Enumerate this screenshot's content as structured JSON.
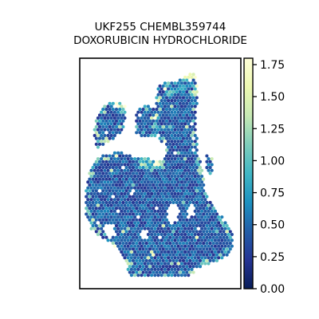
{
  "chart_data": {
    "type": "heatmap",
    "title_lines": [
      "UKF255 CHEMBL359744",
      "DOXORUBICIN HYDROCHLORIDE"
    ],
    "xlabel": "",
    "ylabel": "",
    "colorbar": {
      "colormap": "YlGnBu_r",
      "range": [
        0.0,
        1.8
      ],
      "ticks": [
        0.0,
        0.25,
        0.5,
        0.75,
        1.0,
        1.25,
        1.5,
        1.75
      ],
      "tick_labels": [
        "0.00",
        "0.25",
        "0.50",
        "0.75",
        "1.00",
        "1.25",
        "1.50",
        "1.75"
      ],
      "stops": [
        "#081d58",
        "#253494",
        "#225ea8",
        "#1d91c0",
        "#41b6c4",
        "#7fcdbb",
        "#c7e9b4",
        "#edf8b1",
        "#ffffd9"
      ]
    },
    "value_summary": {
      "typical_range": [
        0.3,
        0.6
      ],
      "max": 1.8,
      "high_value_regions": [
        "top edge of right lobe",
        "upper left lobe edge",
        "middle gap area"
      ]
    },
    "grid": false,
    "legend": "colorbar-right"
  }
}
